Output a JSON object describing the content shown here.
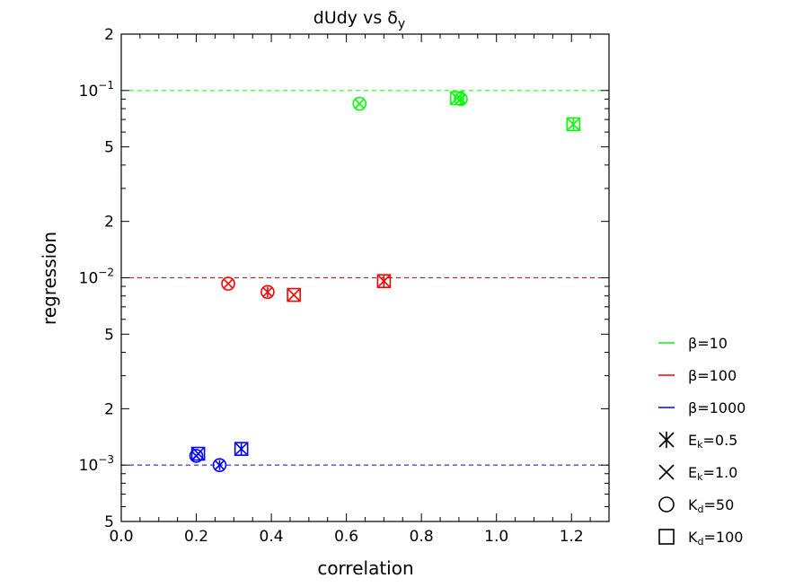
{
  "chart_data": {
    "type": "scatter",
    "title": "dUdy vs δ",
    "title_subscript": "y",
    "xlabel": "correlation",
    "ylabel": "regression",
    "xlim": [
      0.0,
      1.3
    ],
    "ylim": [
      0.0005,
      0.2
    ],
    "y_scale": "log",
    "x_ticks": [
      "0.0",
      "0.2",
      "0.4",
      "0.6",
      "0.8",
      "1.0",
      "1.2"
    ],
    "x_tick_values": [
      0.0,
      0.2,
      0.4,
      0.6,
      0.8,
      1.0,
      1.2
    ],
    "y_ticks": [
      {
        "value": 0.2,
        "mantissa": "2",
        "exponent": ""
      },
      {
        "value": 0.1,
        "mantissa": "10",
        "exponent": "−1"
      },
      {
        "value": 0.05,
        "mantissa": "5",
        "exponent": ""
      },
      {
        "value": 0.02,
        "mantissa": "2",
        "exponent": ""
      },
      {
        "value": 0.01,
        "mantissa": "10",
        "exponent": "−2"
      },
      {
        "value": 0.005,
        "mantissa": "5",
        "exponent": ""
      },
      {
        "value": 0.002,
        "mantissa": "2",
        "exponent": ""
      },
      {
        "value": 0.001,
        "mantissa": "10",
        "exponent": "−3"
      },
      {
        "value": 0.0005,
        "mantissa": "5",
        "exponent": ""
      }
    ],
    "reference_lines": [
      {
        "y": 0.1,
        "color": "#00ff00"
      },
      {
        "y": 0.01,
        "color": "#ff0000"
      },
      {
        "y": 0.001,
        "color": "#0000ff"
      }
    ],
    "series": [
      {
        "name": "β=10",
        "color": "#00ff00",
        "points": [
          {
            "x": 0.635,
            "y": 0.085,
            "marker": "circle-x"
          },
          {
            "x": 0.895,
            "y": 0.091,
            "marker": "square-x"
          },
          {
            "x": 0.905,
            "y": 0.09,
            "marker": "circle-star"
          },
          {
            "x": 1.205,
            "y": 0.066,
            "marker": "square-star"
          }
        ]
      },
      {
        "name": "β=100",
        "color": "#ff0000",
        "points": [
          {
            "x": 0.285,
            "y": 0.0093,
            "marker": "circle-x"
          },
          {
            "x": 0.39,
            "y": 0.0084,
            "marker": "circle-star"
          },
          {
            "x": 0.46,
            "y": 0.0081,
            "marker": "square-x"
          },
          {
            "x": 0.7,
            "y": 0.0096,
            "marker": "square-star"
          }
        ]
      },
      {
        "name": "β=1000",
        "color": "#0000ff",
        "points": [
          {
            "x": 0.2,
            "y": 0.00112,
            "marker": "circle-x"
          },
          {
            "x": 0.205,
            "y": 0.00115,
            "marker": "square-x"
          },
          {
            "x": 0.262,
            "y": 0.001,
            "marker": "circle-star"
          },
          {
            "x": 0.32,
            "y": 0.00122,
            "marker": "square-star"
          }
        ]
      }
    ],
    "legend": {
      "placement": "right",
      "entries": [
        {
          "kind": "line",
          "color": "#00ff00",
          "label": "β=10"
        },
        {
          "kind": "line",
          "color": "#ff0000",
          "label": "β=100"
        },
        {
          "kind": "line",
          "color": "#0000ff",
          "label": "β=1000"
        },
        {
          "kind": "marker",
          "marker": "star",
          "label": "E",
          "sub": "k",
          "suffix": "=0.5"
        },
        {
          "kind": "marker",
          "marker": "x",
          "label": "E",
          "sub": "k",
          "suffix": "=1.0"
        },
        {
          "kind": "marker",
          "marker": "circle",
          "label": "K",
          "sub": "d",
          "suffix": "=50"
        },
        {
          "kind": "marker",
          "marker": "square",
          "label": "K",
          "sub": "d",
          "suffix": "=100"
        }
      ]
    },
    "grid": false
  }
}
